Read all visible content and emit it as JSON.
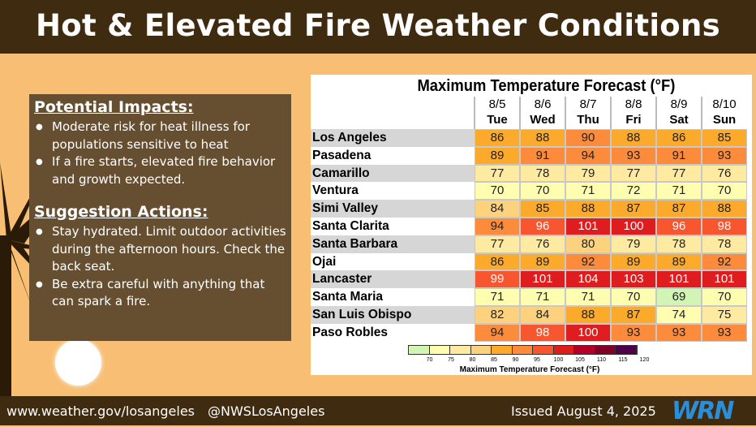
{
  "header": {
    "title": "Hot & Elevated Fire Weather Conditions"
  },
  "panel": {
    "impacts_title": "Potential Impacts:",
    "impacts": [
      "Moderate risk for heat illness for populations sensitive to heat",
      "If a fire starts, elevated fire behavior and growth expected."
    ],
    "actions_title": "Suggestion Actions:",
    "actions": [
      "Stay hydrated. Limit outdoor activities during the afternoon hours. Check the back seat.",
      "Be extra careful with anything that can spark a fire."
    ]
  },
  "table": {
    "title": "Maximum Temperature Forecast (°F)",
    "days": [
      {
        "date": "8/5",
        "day": "Tue"
      },
      {
        "date": "8/6",
        "day": "Wed"
      },
      {
        "date": "8/7",
        "day": "Thu"
      },
      {
        "date": "8/8",
        "day": "Fri"
      },
      {
        "date": "8/9",
        "day": "Sat"
      },
      {
        "date": "8/10",
        "day": "Sun"
      }
    ],
    "rows": [
      {
        "city": "Los Angeles",
        "temps": [
          86,
          88,
          90,
          88,
          86,
          85
        ]
      },
      {
        "city": "Pasadena",
        "temps": [
          89,
          91,
          94,
          93,
          91,
          93
        ]
      },
      {
        "city": "Camarillo",
        "temps": [
          77,
          78,
          79,
          77,
          77,
          76
        ]
      },
      {
        "city": "Ventura",
        "temps": [
          70,
          70,
          71,
          72,
          71,
          70
        ]
      },
      {
        "city": "Simi Valley",
        "temps": [
          84,
          85,
          88,
          87,
          87,
          88
        ]
      },
      {
        "city": "Santa Clarita",
        "temps": [
          94,
          96,
          101,
          100,
          96,
          98
        ]
      },
      {
        "city": "Santa Barbara",
        "temps": [
          77,
          76,
          80,
          79,
          78,
          78
        ]
      },
      {
        "city": "Ojai",
        "temps": [
          86,
          89,
          92,
          89,
          89,
          92
        ]
      },
      {
        "city": "Lancaster",
        "temps": [
          99,
          101,
          104,
          103,
          101,
          101
        ]
      },
      {
        "city": "Santa Maria",
        "temps": [
          71,
          71,
          71,
          70,
          69,
          70
        ]
      },
      {
        "city": "San Luis Obispo",
        "temps": [
          82,
          84,
          88,
          87,
          74,
          75
        ]
      },
      {
        "city": "Paso Robles",
        "temps": [
          94,
          98,
          100,
          93,
          93,
          93
        ]
      }
    ],
    "legend": {
      "title": "Maximum Temperature Forecast (°F)",
      "ticks": [
        "70",
        "75",
        "80",
        "85",
        "90",
        "95",
        "100",
        "105",
        "110",
        "115",
        "120"
      ],
      "colors": [
        "#d2f5b6",
        "#fefdb0",
        "#feeaa0",
        "#fdd27e",
        "#fcaa2c",
        "#fc8b3c",
        "#f8562e",
        "#e01d1e",
        "#b20026",
        "#800026",
        "#4e0048"
      ]
    }
  },
  "footer": {
    "website": "www.weather.gov/losangeles",
    "handle": "@NWSLosAngeles",
    "issued": "Issued August 4, 2025",
    "logo": "WRN"
  }
}
